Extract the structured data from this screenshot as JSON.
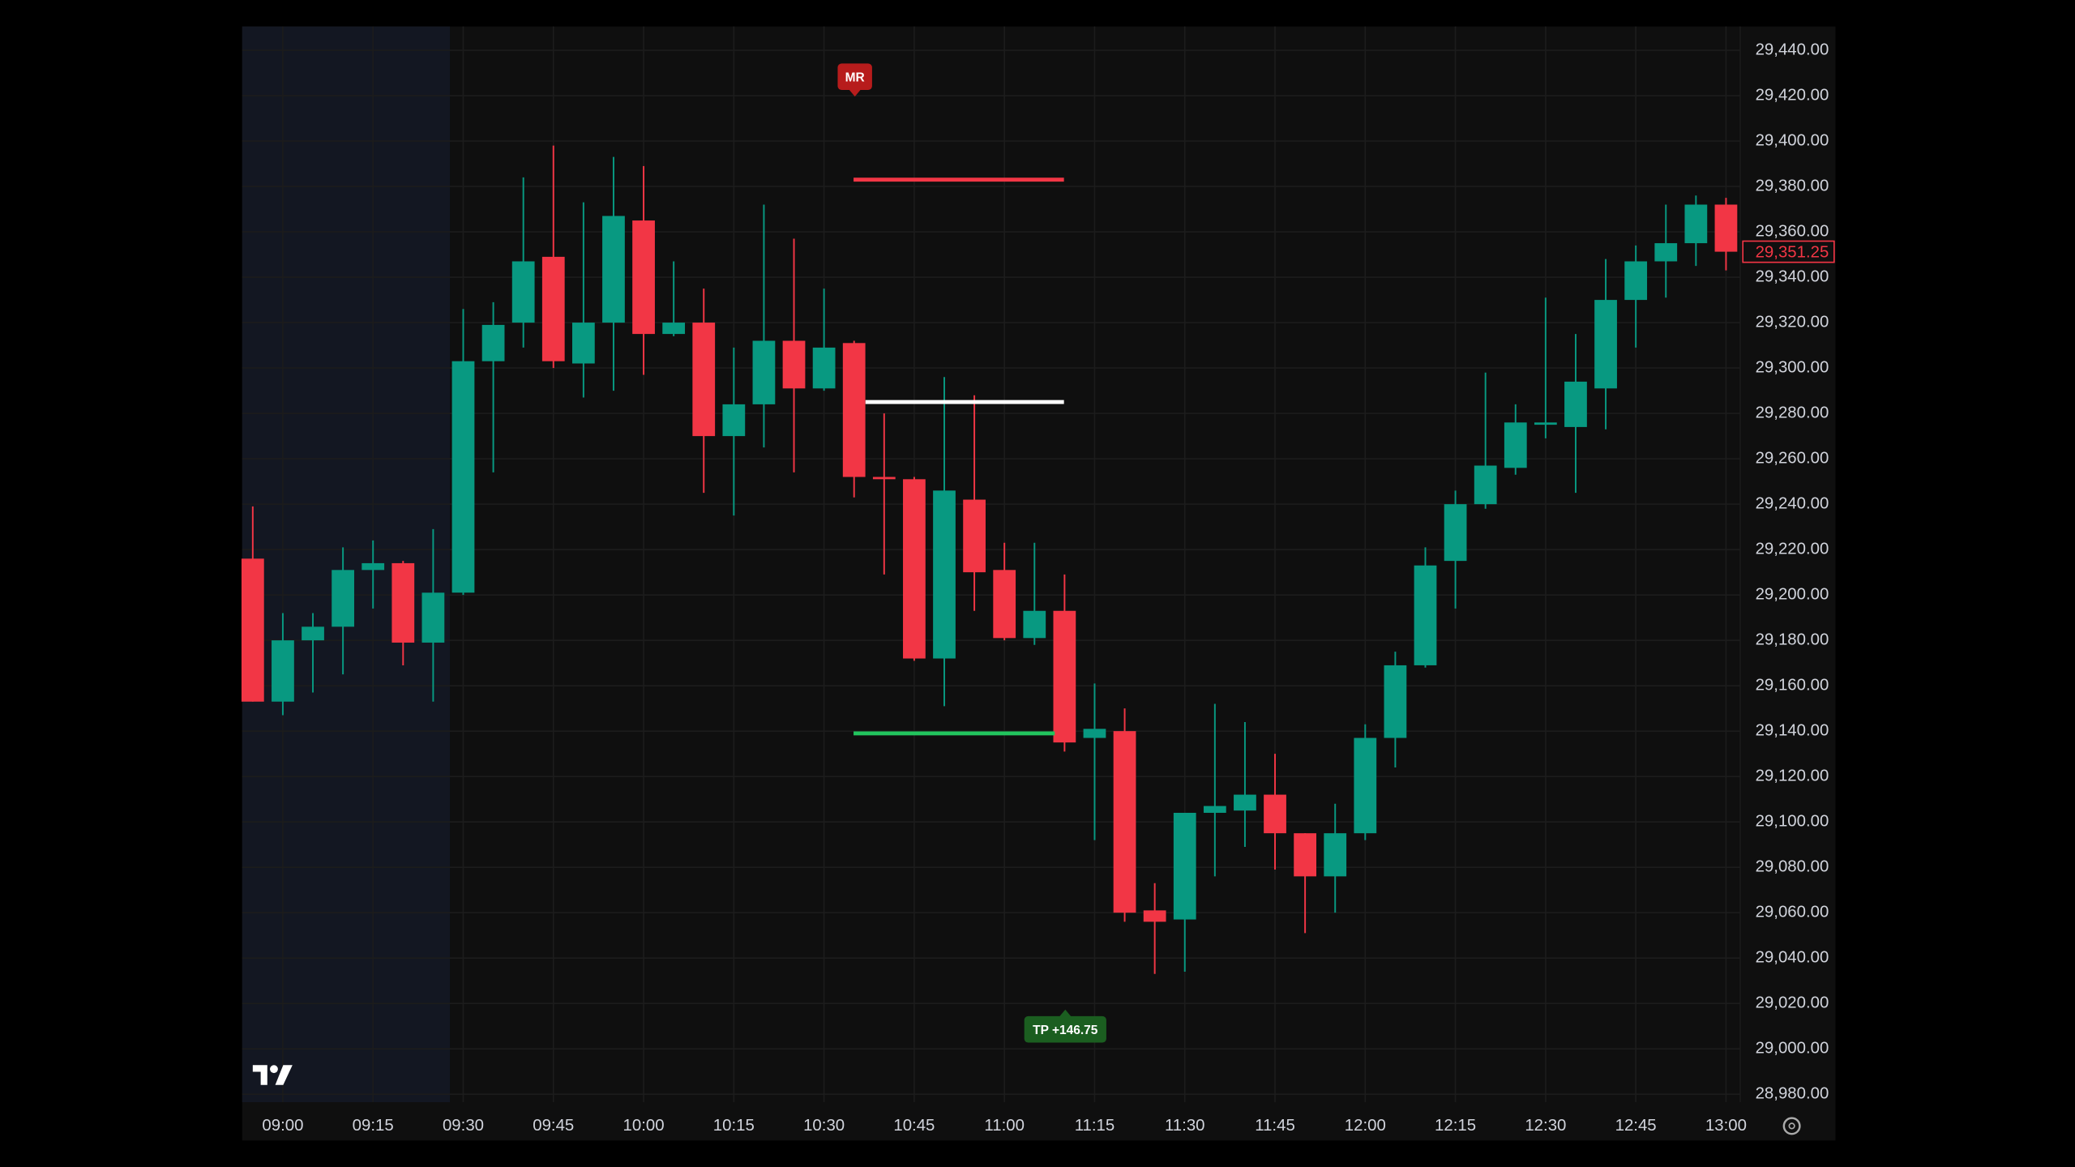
{
  "chart_data": {
    "type": "candlestick",
    "categories": [
      null,
      "09:00",
      null,
      null,
      "09:15",
      null,
      null,
      "09:30",
      null,
      null,
      "09:45",
      null,
      null,
      "10:00",
      null,
      null,
      "10:15",
      null,
      null,
      "10:30",
      null,
      null,
      "10:45",
      null,
      null,
      "11:00",
      null,
      null,
      "11:15",
      null,
      null,
      "11:30",
      null,
      null,
      "11:45",
      null,
      null,
      "12:00",
      null,
      null,
      "12:15",
      null,
      null,
      "12:30",
      null,
      null,
      "12:45",
      null,
      null,
      "13:00"
    ],
    "open": [
      29216,
      29153,
      29180,
      29186,
      29211,
      29214,
      29179,
      29201,
      29303,
      29320,
      29349,
      29302,
      29320,
      29365,
      29315,
      29320,
      29270,
      29284,
      29312,
      29291,
      29311,
      29252,
      29251,
      29172,
      29242,
      29211,
      29181,
      29193,
      29137,
      29140,
      29061,
      29057,
      29104,
      29105,
      29112,
      29095,
      29076,
      29095,
      29137,
      29169,
      29215,
      29240,
      29256,
      29275,
      29274,
      29291,
      29330,
      29347,
      29355,
      29372
    ],
    "high": [
      29239,
      29192,
      29192,
      29221,
      29224,
      29215,
      29229,
      29326,
      29329,
      29384,
      29398,
      29373,
      29393,
      29389,
      29347,
      29335,
      29309,
      29372,
      29357,
      29335,
      29312,
      29280,
      29252,
      29296,
      29288,
      29223,
      29223,
      29209,
      29161,
      29150,
      29073,
      29104,
      29152,
      29144,
      29130,
      29095,
      29108,
      29143,
      29175,
      29221,
      29246,
      29298,
      29284,
      29331,
      29315,
      29348,
      29354,
      29372,
      29376,
      29375
    ],
    "low": [
      29153,
      29147,
      29157,
      29165,
      29194,
      29169,
      29153,
      29200,
      29254,
      29309,
      29300,
      29287,
      29290,
      29297,
      29314,
      29245,
      29235,
      29265,
      29254,
      29290,
      29243,
      29209,
      29171,
      29151,
      29193,
      29180,
      29178,
      29131,
      29092,
      29056,
      29033,
      29034,
      29076,
      29089,
      29079,
      29051,
      29060,
      29092,
      29124,
      29168,
      29194,
      29238,
      29253,
      29269,
      29245,
      29273,
      29309,
      29331,
      29345,
      29343
    ],
    "close": [
      29153,
      29180,
      29186,
      29211,
      29214,
      29179,
      29201,
      29303,
      29319,
      29347,
      29303,
      29320,
      29367,
      29315,
      29320,
      29270,
      29284,
      29312,
      29291,
      29309,
      29252,
      29251,
      29172,
      29246,
      29210,
      29181,
      29193,
      29135,
      29141,
      29060,
      29056,
      29104,
      29107,
      29112,
      29095,
      29076,
      29095,
      29137,
      29169,
      29213,
      29240,
      29257,
      29276,
      29276,
      29294,
      29330,
      29347,
      29355,
      29372,
      29351.25
    ],
    "up_color": "#089981",
    "down_color": "#f23645",
    "ylim": [
      28976.5,
      29450.5
    ],
    "yticks": [
      {
        "value": 28980,
        "label": "28,980.00"
      },
      {
        "value": 29000,
        "label": "29,000.00"
      },
      {
        "value": 29020,
        "label": "29,020.00"
      },
      {
        "value": 29040,
        "label": "29,040.00"
      },
      {
        "value": 29060,
        "label": "29,060.00"
      },
      {
        "value": 29080,
        "label": "29,080.00"
      },
      {
        "value": 29100,
        "label": "29,100.00"
      },
      {
        "value": 29120,
        "label": "29,120.00"
      },
      {
        "value": 29140,
        "label": "29,140.00"
      },
      {
        "value": 29160,
        "label": "29,160.00"
      },
      {
        "value": 29180,
        "label": "29,180.00"
      },
      {
        "value": 29200,
        "label": "29,200.00"
      },
      {
        "value": 29220,
        "label": "29,220.00"
      },
      {
        "value": 29240,
        "label": "29,240.00"
      },
      {
        "value": 29260,
        "label": "29,260.00"
      },
      {
        "value": 29280,
        "label": "29,280.00"
      },
      {
        "value": 29300,
        "label": "29,300.00"
      },
      {
        "value": 29320,
        "label": "29,320.00"
      },
      {
        "value": 29340,
        "label": "29,340.00"
      },
      {
        "value": 29360,
        "label": "29,360.00"
      },
      {
        "value": 29380,
        "label": "29,380.00"
      },
      {
        "value": 29400,
        "label": "29,400.00"
      },
      {
        "value": 29420,
        "label": "29,420.00"
      },
      {
        "value": 29440,
        "label": "29,440.00"
      }
    ],
    "grid": true,
    "last_price": {
      "value": 29351.25,
      "label": "29,351.25",
      "color": "#f23645"
    },
    "levels": [
      {
        "value": 29383,
        "color": "#f23645"
      },
      {
        "value": 29285,
        "color": "#ffffff"
      },
      {
        "value": 29139,
        "color": "#22c55e"
      }
    ],
    "annotations": [
      {
        "text": "MR",
        "color": "#b71c1c"
      },
      {
        "text": "TP +146.75",
        "color": "#1b5e20"
      }
    ]
  }
}
